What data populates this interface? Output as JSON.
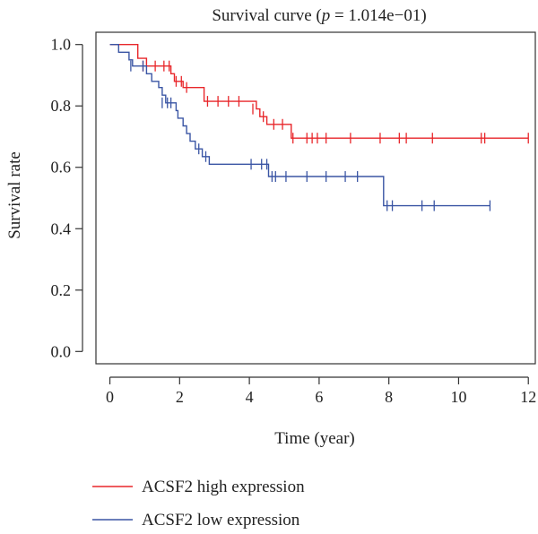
{
  "chart_data": {
    "type": "line",
    "title_prefix": "Survival curve (",
    "title_p": "p",
    "title_suffix": " = 1.014e−01)",
    "xlabel": "Time (year)",
    "ylabel": "Survival rate",
    "xlim": [
      -0.4,
      12.2
    ],
    "ylim": [
      -0.04,
      1.04
    ],
    "x_ticks": [
      0,
      2,
      4,
      6,
      8,
      10,
      12
    ],
    "y_ticks": [
      0.0,
      0.2,
      0.4,
      0.6,
      0.8,
      1.0
    ],
    "x_tick_labels": [
      "0",
      "2",
      "4",
      "6",
      "8",
      "10",
      "12"
    ],
    "y_tick_labels": [
      "0.0",
      "0.2",
      "0.4",
      "0.6",
      "0.8",
      "1.0"
    ],
    "grid": false,
    "legend_position": "bottom-left",
    "series": [
      {
        "name": "ACSF2 high expression",
        "color": "#e8262a",
        "steps": [
          [
            0.0,
            1.0
          ],
          [
            0.8,
            0.955
          ],
          [
            1.05,
            0.93
          ],
          [
            1.75,
            0.905
          ],
          [
            1.85,
            0.88
          ],
          [
            2.1,
            0.86
          ],
          [
            2.7,
            0.815
          ],
          [
            4.2,
            0.79
          ],
          [
            4.3,
            0.765
          ],
          [
            4.5,
            0.74
          ],
          [
            5.2,
            0.695
          ],
          [
            12.0,
            0.695
          ]
        ],
        "censors": [
          [
            0.95,
            0.93
          ],
          [
            1.3,
            0.93
          ],
          [
            1.55,
            0.93
          ],
          [
            1.7,
            0.93
          ],
          [
            1.9,
            0.88
          ],
          [
            2.05,
            0.88
          ],
          [
            2.2,
            0.86
          ],
          [
            2.8,
            0.815
          ],
          [
            3.1,
            0.815
          ],
          [
            3.4,
            0.815
          ],
          [
            3.7,
            0.815
          ],
          [
            4.1,
            0.79
          ],
          [
            4.4,
            0.765
          ],
          [
            4.7,
            0.74
          ],
          [
            4.95,
            0.74
          ],
          [
            5.25,
            0.695
          ],
          [
            5.65,
            0.695
          ],
          [
            5.8,
            0.695
          ],
          [
            5.95,
            0.695
          ],
          [
            6.2,
            0.695
          ],
          [
            6.9,
            0.695
          ],
          [
            7.75,
            0.695
          ],
          [
            8.3,
            0.695
          ],
          [
            8.5,
            0.695
          ],
          [
            9.25,
            0.695
          ],
          [
            10.65,
            0.695
          ],
          [
            10.75,
            0.695
          ],
          [
            12.0,
            0.695
          ]
        ]
      },
      {
        "name": "ACSF2 low expression",
        "color": "#3a55a4",
        "steps": [
          [
            0.0,
            1.0
          ],
          [
            0.25,
            0.975
          ],
          [
            0.55,
            0.95
          ],
          [
            0.65,
            0.93
          ],
          [
            1.05,
            0.905
          ],
          [
            1.2,
            0.88
          ],
          [
            1.4,
            0.86
          ],
          [
            1.5,
            0.835
          ],
          [
            1.6,
            0.81
          ],
          [
            1.9,
            0.785
          ],
          [
            1.95,
            0.76
          ],
          [
            2.1,
            0.735
          ],
          [
            2.2,
            0.71
          ],
          [
            2.3,
            0.685
          ],
          [
            2.45,
            0.66
          ],
          [
            2.65,
            0.635
          ],
          [
            2.85,
            0.61
          ],
          [
            4.55,
            0.57
          ],
          [
            7.85,
            0.475
          ],
          [
            10.9,
            0.475
          ]
        ],
        "censors": [
          [
            0.6,
            0.93
          ],
          [
            0.95,
            0.93
          ],
          [
            1.5,
            0.81
          ],
          [
            1.65,
            0.81
          ],
          [
            1.75,
            0.81
          ],
          [
            2.55,
            0.66
          ],
          [
            2.75,
            0.635
          ],
          [
            4.05,
            0.61
          ],
          [
            4.35,
            0.61
          ],
          [
            4.5,
            0.61
          ],
          [
            4.65,
            0.57
          ],
          [
            4.75,
            0.57
          ],
          [
            5.05,
            0.57
          ],
          [
            5.65,
            0.57
          ],
          [
            6.2,
            0.57
          ],
          [
            6.75,
            0.57
          ],
          [
            7.1,
            0.57
          ],
          [
            7.95,
            0.475
          ],
          [
            8.1,
            0.475
          ],
          [
            8.95,
            0.475
          ],
          [
            9.3,
            0.475
          ],
          [
            10.9,
            0.475
          ]
        ]
      }
    ]
  }
}
